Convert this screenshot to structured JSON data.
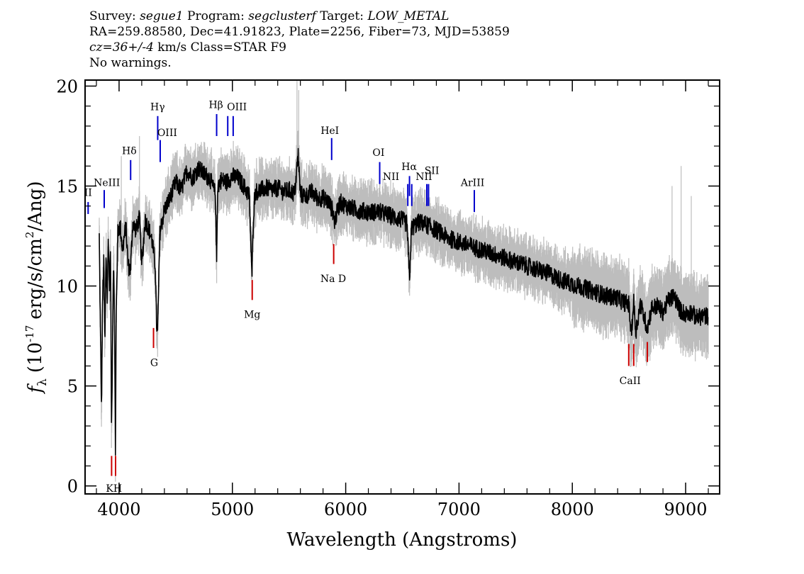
{
  "header": {
    "line1": {
      "survey_label": "Survey:",
      "survey": "segue1",
      "program_label": "Program:",
      "program": "segclusterf",
      "target_label": "Target:",
      "target": "LOW_METAL"
    },
    "line2": "RA=259.88580, Dec=41.91823, Plate=2256, Fiber=73, MJD=53859",
    "line3": {
      "cz": "cz=36+/-4",
      "rest": "km/s Class=STAR F9"
    },
    "line4": "No warnings."
  },
  "chart_data": {
    "type": "line",
    "xlabel": "Wavelength (Angstroms)",
    "ylabel_parts": {
      "f": "f",
      "sub": "λ",
      "pre": "(10",
      "exp1": "-17",
      "mid": "erg/s/cm",
      "exp2": "2",
      "post": "/Ang)"
    },
    "xlim": [
      3700,
      9300
    ],
    "ylim": [
      -0.4,
      20.3
    ],
    "x_ticks": [
      4000,
      5000,
      6000,
      7000,
      8000,
      9000
    ],
    "y_ticks": [
      0,
      5,
      10,
      15,
      20
    ],
    "colors": {
      "spectrum": "#000000",
      "error": "#bdbdbd",
      "emission": "#0000cc",
      "absorption": "#cc0000"
    },
    "spectrum": {
      "x": [
        3825,
        3835,
        3845,
        3855,
        3865,
        3875,
        3885,
        3895,
        3905,
        3915,
        3925,
        3933,
        3940,
        3950,
        3960,
        3968,
        3975,
        3990,
        4010,
        4030,
        4060,
        4080,
        4101,
        4120,
        4150,
        4180,
        4200,
        4230,
        4260,
        4290,
        4320,
        4330,
        4340,
        4360,
        4400,
        4450,
        4500,
        4550,
        4600,
        4650,
        4700,
        4750,
        4800,
        4830,
        4850,
        4861,
        4870,
        4900,
        4950,
        5000,
        5050,
        5100,
        5150,
        5172,
        5185,
        5200,
        5250,
        5300,
        5350,
        5400,
        5450,
        5500,
        5550,
        5580,
        5600,
        5650,
        5700,
        5750,
        5800,
        5850,
        5890,
        5900,
        5950,
        6000,
        6100,
        6200,
        6300,
        6400,
        6500,
        6540,
        6563,
        6580,
        6650,
        6700,
        6800,
        6900,
        7000,
        7100,
        7200,
        7300,
        7400,
        7500,
        7600,
        7700,
        7800,
        7900,
        8000,
        8100,
        8200,
        8300,
        8400,
        8450,
        8498,
        8520,
        8542,
        8560,
        8600,
        8662,
        8700,
        8750,
        8800,
        8850,
        8900,
        8950,
        9000,
        9050,
        9100,
        9150,
        9200
      ],
      "y": [
        12.5,
        8.0,
        3.8,
        9.5,
        11.2,
        7.0,
        11.8,
        9.2,
        12.5,
        10.0,
        11.6,
        2.8,
        6.0,
        11.3,
        8.5,
        1.4,
        9.0,
        12.8,
        13.0,
        11.8,
        13.0,
        11.0,
        10.8,
        13.1,
        12.8,
        13.4,
        11.0,
        13.3,
        12.9,
        12.3,
        11.0,
        8.2,
        7.6,
        12.7,
        13.8,
        14.4,
        15.2,
        14.8,
        15.8,
        15.4,
        15.9,
        15.6,
        15.4,
        14.9,
        14.6,
        11.1,
        15.0,
        15.3,
        15.2,
        15.5,
        15.4,
        15.0,
        14.5,
        10.4,
        13.4,
        14.7,
        14.8,
        14.9,
        14.8,
        14.9,
        14.7,
        14.8,
        14.6,
        16.6,
        14.6,
        14.5,
        14.7,
        14.4,
        14.4,
        14.2,
        13.7,
        13.2,
        14.2,
        14.0,
        13.8,
        13.7,
        13.7,
        13.5,
        13.3,
        13.1,
        10.3,
        12.9,
        13.2,
        13.1,
        12.8,
        12.4,
        12.2,
        12.0,
        11.8,
        11.6,
        11.4,
        11.2,
        11.0,
        10.8,
        10.6,
        10.3,
        10.1,
        9.9,
        9.7,
        9.5,
        9.4,
        9.2,
        9.1,
        7.6,
        9.2,
        7.7,
        9.1,
        7.9,
        8.9,
        9.0,
        8.7,
        9.3,
        9.5,
        8.8,
        8.6,
        8.7,
        8.4,
        8.5,
        8.5
      ]
    },
    "emission_lines": [
      {
        "label": "",
        "clip": "II",
        "x": 3727,
        "y_bottom": 13.6,
        "y_top": 14.2,
        "lx": 3727,
        "ly": 14.5
      },
      {
        "label": "NeIII",
        "x": 3869,
        "y_bottom": 13.9,
        "y_top": 14.8,
        "lx": 3892,
        "ly": 15.0
      },
      {
        "label": "Hδ",
        "x": 4102,
        "y_bottom": 15.3,
        "y_top": 16.3,
        "lx": 4090,
        "ly": 16.6
      },
      {
        "label": "Hγ",
        "x": 4341,
        "y_bottom": 17.3,
        "y_top": 18.5,
        "lx": 4340,
        "ly": 18.8
      },
      {
        "label": "OIII",
        "x": 4363,
        "y_bottom": 16.2,
        "y_top": 17.3,
        "lx": 4425,
        "ly": 17.5
      },
      {
        "label": "Hβ",
        "x": 4861,
        "y_bottom": 17.5,
        "y_top": 18.6,
        "lx": 4855,
        "ly": 18.9
      },
      {
        "label": "OIII",
        "x": 4959,
        "y_bottom": 17.5,
        "y_top": 18.5,
        "lx": 5040,
        "ly": 18.8
      },
      {
        "label": "",
        "x": 5007,
        "y_bottom": 17.5,
        "y_top": 18.5
      },
      {
        "label": "HeI",
        "x": 5876,
        "y_bottom": 16.3,
        "y_top": 17.4,
        "lx": 5860,
        "ly": 17.6
      },
      {
        "label": "OI",
        "x": 6300,
        "y_bottom": 15.1,
        "y_top": 16.2,
        "lx": 6290,
        "ly": 16.5
      },
      {
        "label": "NII",
        "x": 6548,
        "y_bottom": 14.0,
        "y_top": 15.1,
        "lx": 6400,
        "ly": 15.3
      },
      {
        "label": "Hα",
        "x": 6563,
        "y_bottom": 14.5,
        "y_top": 15.5,
        "lx": 6560,
        "ly": 15.8
      },
      {
        "label": "",
        "x": 6583,
        "y_bottom": 14.0,
        "y_top": 15.1
      },
      {
        "label": "NII",
        "x": 6716,
        "y_bottom": 14.0,
        "y_top": 15.1,
        "lx": 6690,
        "ly": 15.3
      },
      {
        "label": "SII",
        "x": 6731,
        "y_bottom": 14.0,
        "y_top": 15.1,
        "lx": 6760,
        "ly": 15.6
      },
      {
        "label": "ArIII",
        "x": 7135,
        "y_bottom": 13.7,
        "y_top": 14.8,
        "lx": 7120,
        "ly": 15.0
      }
    ],
    "absorption_lines": [
      {
        "label": "",
        "x": 3934,
        "y_bottom": 0.5,
        "y_top": 1.5
      },
      {
        "label": "KH",
        "x": 3969,
        "y_bottom": 0.5,
        "y_top": 1.5,
        "lx": 3955,
        "ly": -0.3
      },
      {
        "label": "G",
        "x": 4304,
        "y_bottom": 6.9,
        "y_top": 7.9,
        "lx": 4310,
        "ly": 6.0
      },
      {
        "label": "Mg",
        "x": 5175,
        "y_bottom": 9.3,
        "y_top": 10.3,
        "lx": 5175,
        "ly": 8.4
      },
      {
        "label": "Na D",
        "x": 5894,
        "y_bottom": 11.1,
        "y_top": 12.1,
        "lx": 5890,
        "ly": 10.2
      },
      {
        "label": "",
        "x": 8498,
        "y_bottom": 6.0,
        "y_top": 7.1
      },
      {
        "label": "CaII",
        "x": 8542,
        "y_bottom": 6.0,
        "y_top": 7.1,
        "lx": 8510,
        "ly": 5.1
      },
      {
        "label": "",
        "x": 8662,
        "y_bottom": 6.2,
        "y_top": 7.2
      }
    ]
  }
}
